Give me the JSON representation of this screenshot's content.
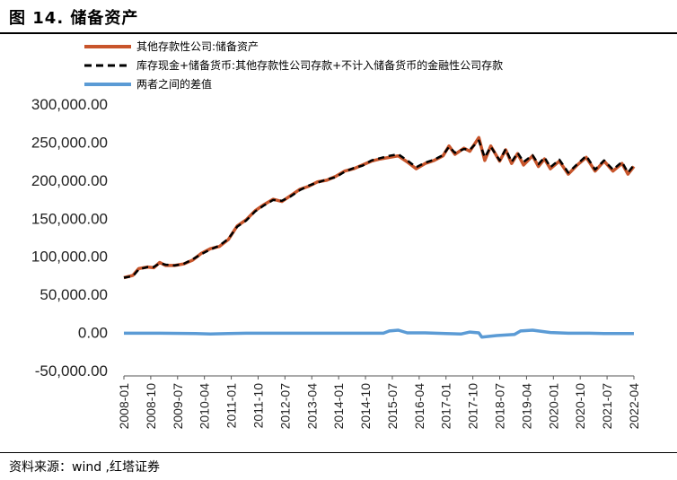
{
  "header": {
    "title": "图 14. 储备资产"
  },
  "footer": {
    "source": "资料来源：wind ,红塔证券"
  },
  "colors": {
    "series1": "#C8552B",
    "series2": "#000000",
    "series3": "#5B9BD5"
  },
  "chart_data": {
    "type": "line",
    "title": "",
    "xlabel": "",
    "ylabel": "",
    "ylim": [
      -50000,
      300000
    ],
    "yticks": [
      "300,000.00",
      "250,000.00",
      "200,000.00",
      "150,000.00",
      "100,000.00",
      "50,000.00",
      "0.00",
      "-50,000.00"
    ],
    "ytick_values": [
      300000,
      250000,
      200000,
      150000,
      100000,
      50000,
      0,
      -50000
    ],
    "xticks": [
      "2008-01",
      "2008-10",
      "2009-07",
      "2010-04",
      "2011-01",
      "2011-10",
      "2012-07",
      "2013-04",
      "2014-01",
      "2014-10",
      "2015-07",
      "2016-04",
      "2017-01",
      "2017-10",
      "2018-07",
      "2019-04",
      "2020-01",
      "2020-10",
      "2021-07",
      "2022-04"
    ],
    "x_start": "2008-01",
    "x_end": "2022-04",
    "grid": false,
    "legend_position": "top-left",
    "series": [
      {
        "name": "其他存款性公司:储备资产",
        "style": "solid",
        "points": [
          [
            "2008-01",
            72000
          ],
          [
            "2008-04",
            75000
          ],
          [
            "2008-06",
            84000
          ],
          [
            "2008-09",
            86000
          ],
          [
            "2008-11",
            85000
          ],
          [
            "2009-01",
            92000
          ],
          [
            "2009-03",
            88000
          ],
          [
            "2009-06",
            88000
          ],
          [
            "2009-09",
            90000
          ],
          [
            "2009-12",
            95000
          ],
          [
            "2010-03",
            104000
          ],
          [
            "2010-06",
            110000
          ],
          [
            "2010-09",
            113000
          ],
          [
            "2010-12",
            122000
          ],
          [
            "2011-03",
            140000
          ],
          [
            "2011-06",
            148000
          ],
          [
            "2011-09",
            160000
          ],
          [
            "2011-12",
            168000
          ],
          [
            "2012-03",
            175000
          ],
          [
            "2012-06",
            172000
          ],
          [
            "2012-09",
            180000
          ],
          [
            "2012-12",
            188000
          ],
          [
            "2013-03",
            192000
          ],
          [
            "2013-06",
            198000
          ],
          [
            "2013-09",
            200000
          ],
          [
            "2013-12",
            205000
          ],
          [
            "2014-03",
            212000
          ],
          [
            "2014-06",
            215000
          ],
          [
            "2014-09",
            220000
          ],
          [
            "2014-12",
            225000
          ],
          [
            "2015-03",
            228000
          ],
          [
            "2015-06",
            230000
          ],
          [
            "2015-09",
            232000
          ],
          [
            "2015-12",
            224000
          ],
          [
            "2016-03",
            215000
          ],
          [
            "2016-06",
            222000
          ],
          [
            "2016-09",
            226000
          ],
          [
            "2016-12",
            232000
          ],
          [
            "2017-02",
            245000
          ],
          [
            "2017-04",
            234000
          ],
          [
            "2017-07",
            242000
          ],
          [
            "2017-09",
            238000
          ],
          [
            "2017-12",
            256000
          ],
          [
            "2018-02",
            226000
          ],
          [
            "2018-04",
            245000
          ],
          [
            "2018-07",
            225000
          ],
          [
            "2018-09",
            240000
          ],
          [
            "2018-11",
            222000
          ],
          [
            "2019-01",
            235000
          ],
          [
            "2019-03",
            220000
          ],
          [
            "2019-06",
            232000
          ],
          [
            "2019-08",
            218000
          ],
          [
            "2019-10",
            228000
          ],
          [
            "2019-12",
            215000
          ],
          [
            "2020-03",
            225000
          ],
          [
            "2020-06",
            208000
          ],
          [
            "2020-09",
            220000
          ],
          [
            "2020-12",
            230000
          ],
          [
            "2021-03",
            212000
          ],
          [
            "2021-06",
            225000
          ],
          [
            "2021-09",
            212000
          ],
          [
            "2021-12",
            222000
          ],
          [
            "2022-02",
            208000
          ],
          [
            "2022-04",
            218000
          ]
        ]
      },
      {
        "name": "库存现金+储备货币:其他存款性公司存款+不计入储备货币的金融性公司存款",
        "style": "dashed",
        "points": [
          [
            "2008-01",
            72000
          ],
          [
            "2008-04",
            74000
          ],
          [
            "2008-06",
            83000
          ],
          [
            "2008-09",
            86000
          ],
          [
            "2008-11",
            86000
          ],
          [
            "2009-01",
            91000
          ],
          [
            "2009-03",
            89000
          ],
          [
            "2009-06",
            88000
          ],
          [
            "2009-09",
            90000
          ],
          [
            "2009-12",
            96000
          ],
          [
            "2010-03",
            103000
          ],
          [
            "2010-06",
            109000
          ],
          [
            "2010-09",
            114000
          ],
          [
            "2010-12",
            123000
          ],
          [
            "2011-03",
            139000
          ],
          [
            "2011-06",
            147000
          ],
          [
            "2011-09",
            159000
          ],
          [
            "2011-12",
            167000
          ],
          [
            "2012-03",
            174000
          ],
          [
            "2012-06",
            173000
          ],
          [
            "2012-09",
            179000
          ],
          [
            "2012-12",
            187000
          ],
          [
            "2013-03",
            193000
          ],
          [
            "2013-06",
            197000
          ],
          [
            "2013-09",
            201000
          ],
          [
            "2013-12",
            204000
          ],
          [
            "2014-03",
            211000
          ],
          [
            "2014-06",
            216000
          ],
          [
            "2014-09",
            219000
          ],
          [
            "2014-12",
            226000
          ],
          [
            "2015-03",
            229000
          ],
          [
            "2015-06",
            232000
          ],
          [
            "2015-09",
            234000
          ],
          [
            "2015-12",
            226000
          ],
          [
            "2016-03",
            217000
          ],
          [
            "2016-06",
            223000
          ],
          [
            "2016-09",
            227000
          ],
          [
            "2016-12",
            233000
          ],
          [
            "2017-02",
            244000
          ],
          [
            "2017-04",
            236000
          ],
          [
            "2017-07",
            241000
          ],
          [
            "2017-09",
            240000
          ],
          [
            "2017-12",
            252000
          ],
          [
            "2018-02",
            230000
          ],
          [
            "2018-04",
            244000
          ],
          [
            "2018-07",
            226000
          ],
          [
            "2018-09",
            241000
          ],
          [
            "2018-11",
            224000
          ],
          [
            "2019-01",
            236000
          ],
          [
            "2019-03",
            224000
          ],
          [
            "2019-06",
            233000
          ],
          [
            "2019-08",
            221000
          ],
          [
            "2019-10",
            230000
          ],
          [
            "2019-12",
            217000
          ],
          [
            "2020-03",
            227000
          ],
          [
            "2020-06",
            210000
          ],
          [
            "2020-09",
            221000
          ],
          [
            "2020-12",
            232000
          ],
          [
            "2021-03",
            214000
          ],
          [
            "2021-06",
            226000
          ],
          [
            "2021-09",
            214000
          ],
          [
            "2021-12",
            224000
          ],
          [
            "2022-02",
            210000
          ],
          [
            "2022-04",
            220000
          ]
        ]
      },
      {
        "name": "两者之间的差值",
        "style": "solid",
        "points": [
          [
            "2008-01",
            -1000
          ],
          [
            "2009-01",
            -1000
          ],
          [
            "2010-01",
            -1500
          ],
          [
            "2010-06",
            -2000
          ],
          [
            "2010-12",
            -1500
          ],
          [
            "2011-06",
            -1000
          ],
          [
            "2012-06",
            -1000
          ],
          [
            "2013-06",
            -1000
          ],
          [
            "2014-06",
            -1000
          ],
          [
            "2015-04",
            -1000
          ],
          [
            "2015-06",
            2000
          ],
          [
            "2015-09",
            3000
          ],
          [
            "2015-12",
            -500
          ],
          [
            "2016-06",
            -500
          ],
          [
            "2017-01",
            -1500
          ],
          [
            "2017-06",
            -2000
          ],
          [
            "2017-09",
            500
          ],
          [
            "2017-12",
            -500
          ],
          [
            "2018-01",
            -6000
          ],
          [
            "2018-06",
            -4000
          ],
          [
            "2018-12",
            -2500
          ],
          [
            "2019-02",
            2000
          ],
          [
            "2019-06",
            3000
          ],
          [
            "2019-12",
            0
          ],
          [
            "2020-06",
            -1000
          ],
          [
            "2021-01",
            -1000
          ],
          [
            "2021-06",
            -1500
          ],
          [
            "2022-04",
            -1500
          ]
        ]
      }
    ]
  }
}
